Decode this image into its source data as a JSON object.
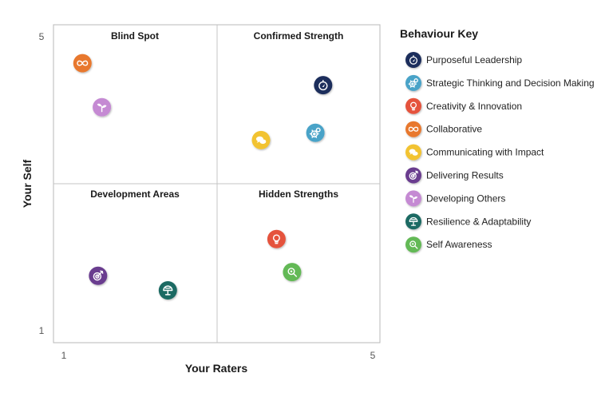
{
  "chart_data": {
    "type": "scatter",
    "xlabel": "Your Raters",
    "ylabel": "Your Self",
    "xlim": [
      1,
      5
    ],
    "ylim": [
      1,
      5
    ],
    "x_ticks": [
      "1",
      "5"
    ],
    "y_ticks": [
      "1",
      "5"
    ],
    "grid": false,
    "quadrant_split": {
      "x": 3,
      "y": 3
    },
    "quadrants": {
      "top_left": "Blind Spot",
      "top_right": "Confirmed Strength",
      "bottom_left": "Development Areas",
      "bottom_right": "Hidden Strengths"
    },
    "legend_title": "Behaviour Key",
    "legend_position": "right",
    "series": [
      {
        "name": "Purposeful Leadership",
        "color": "#1f2d5c",
        "icon": "compass-icon",
        "x": 4.35,
        "y": 4.35
      },
      {
        "name": "Strategic Thinking and Decision Making",
        "color": "#4aa3c8",
        "icon": "gears-icon",
        "x": 4.25,
        "y": 3.7
      },
      {
        "name": "Creativity & Innovation",
        "color": "#e5533c",
        "icon": "lightbulb-icon",
        "x": 3.75,
        "y": 2.25
      },
      {
        "name": "Collaborative",
        "color": "#e8782e",
        "icon": "infinity-icon",
        "x": 1.25,
        "y": 4.65
      },
      {
        "name": "Communicating with Impact",
        "color": "#f2c330",
        "icon": "speech-bubbles-icon",
        "x": 3.55,
        "y": 3.6
      },
      {
        "name": "Delivering Results",
        "color": "#6a3d8f",
        "icon": "target-icon",
        "x": 1.45,
        "y": 1.75
      },
      {
        "name": "Developing Others",
        "color": "#c58ad3",
        "icon": "sprout-icon",
        "x": 1.5,
        "y": 4.05
      },
      {
        "name": "Resilience & Adaptability",
        "color": "#1d6b63",
        "icon": "tree-icon",
        "x": 2.35,
        "y": 1.55
      },
      {
        "name": "Self Awareness",
        "color": "#63b956",
        "icon": "magnifier-icon",
        "x": 3.95,
        "y": 1.8
      }
    ]
  }
}
